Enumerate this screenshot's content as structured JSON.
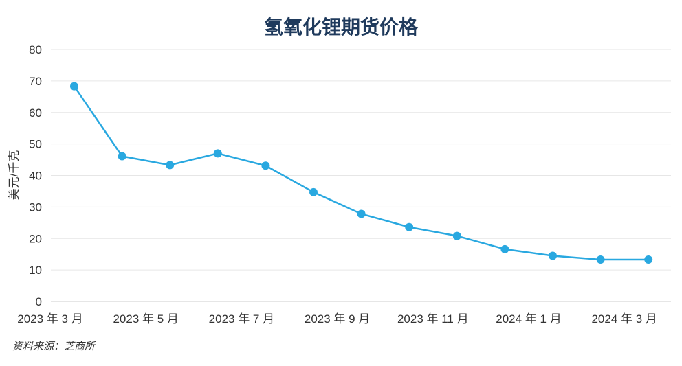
{
  "chart_data": {
    "type": "line",
    "title": "氢氧化锂期货价格",
    "ylabel": "美元/千克",
    "xlabel": "",
    "ylim": [
      0,
      80
    ],
    "yticks": [
      0,
      10,
      20,
      30,
      40,
      50,
      60,
      70,
      80
    ],
    "x": [
      "2023-03",
      "2023-04",
      "2023-05",
      "2023-06",
      "2023-07",
      "2023-08",
      "2023-09",
      "2023-10",
      "2023-11",
      "2023-12",
      "2024-01",
      "2024-02",
      "2024-03"
    ],
    "x_tick_labels": [
      "2023 年 3 月",
      "2023 年 5 月",
      "2023 年 7 月",
      "2023 年 9 月",
      "2023 年 11 月",
      "2024 年 1 月",
      "2024 年 3 月"
    ],
    "series": [
      {
        "values": [
          68.3,
          46.1,
          43.3,
          47.0,
          43.1,
          34.7,
          27.8,
          23.6,
          20.8,
          16.6,
          14.5,
          13.3,
          13.3
        ]
      }
    ],
    "grid": true,
    "line_color": "#29a8e0",
    "source": "资料来源：芝商所"
  }
}
